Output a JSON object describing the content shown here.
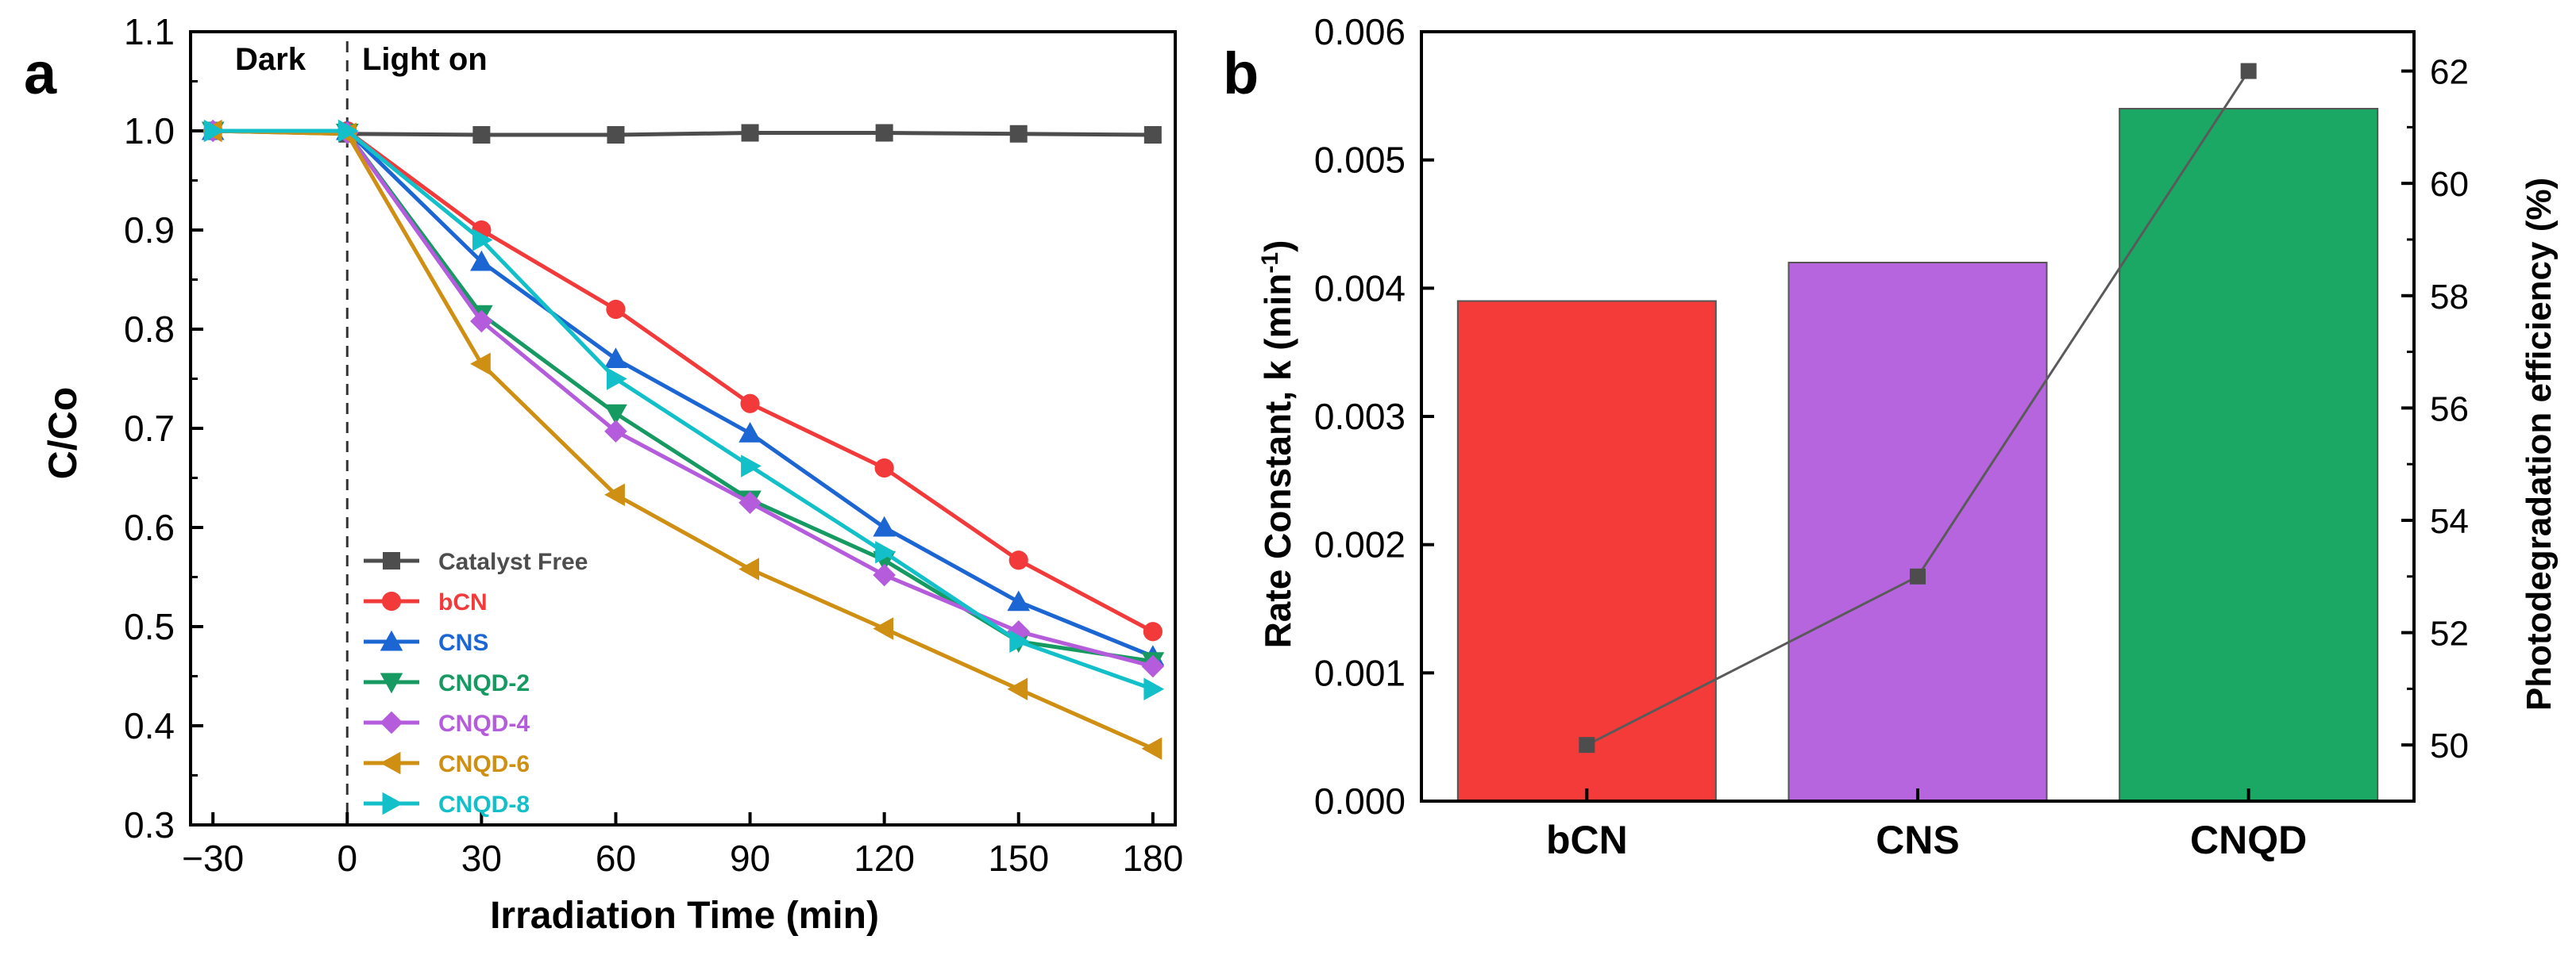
{
  "panels": {
    "a": {
      "letter": "a",
      "annotations": {
        "dark": "Dark",
        "light": "Light on"
      },
      "xlabel": "Irradiation Time (min)",
      "ylabel": "C/Co",
      "xticks": [
        "−30",
        "0",
        "30",
        "60",
        "90",
        "120",
        "150",
        "180"
      ],
      "yticks": [
        "0.3",
        "0.4",
        "0.5",
        "0.6",
        "0.7",
        "0.8",
        "0.9",
        "1.0",
        "1.1"
      ]
    },
    "b": {
      "letter": "b",
      "ylabel_left": "Rate Constant, k (min",
      "ylabel_left_sup": "-1",
      "ylabel_left_end": ")",
      "ylabel_right": "Photodegradation efficiency (%)",
      "yticks_left": [
        "0.000",
        "0.001",
        "0.002",
        "0.003",
        "0.004",
        "0.005",
        "0.006"
      ],
      "yticks_right": [
        "50",
        "52",
        "54",
        "56",
        "58",
        "60",
        "62"
      ]
    }
  },
  "chart_data": [
    {
      "type": "line",
      "panel": "a",
      "title": "",
      "xlabel": "Irradiation Time (min)",
      "ylabel": "C/Co",
      "xlim": [
        -35,
        185
      ],
      "ylim": [
        0.3,
        1.1
      ],
      "x": [
        -30,
        0,
        30,
        60,
        90,
        120,
        150,
        180
      ],
      "annotations": [
        "Dark",
        "Light on"
      ],
      "legend_position": "bottom-left",
      "series": [
        {
          "name": "Catalyst Free",
          "color": "#4d4d4d",
          "marker": "square",
          "values": [
            1.0,
            0.997,
            0.996,
            0.996,
            0.998,
            0.998,
            0.997,
            0.996
          ]
        },
        {
          "name": "bCN",
          "color": "#f23a3a",
          "marker": "circle",
          "values": [
            1.0,
            1.0,
            0.9,
            0.82,
            0.725,
            0.66,
            0.567,
            0.495
          ]
        },
        {
          "name": "CNS",
          "color": "#1c66d4",
          "marker": "triangle-up",
          "values": [
            1.0,
            1.0,
            0.868,
            0.77,
            0.695,
            0.6,
            0.525,
            0.47
          ]
        },
        {
          "name": "CNQD-2",
          "color": "#169a62",
          "marker": "triangle-down",
          "values": [
            1.0,
            0.998,
            0.815,
            0.715,
            0.628,
            0.567,
            0.485,
            0.465
          ]
        },
        {
          "name": "CNQD-4",
          "color": "#b45cdc",
          "marker": "diamond",
          "values": [
            1.0,
            0.998,
            0.808,
            0.697,
            0.625,
            0.552,
            0.495,
            0.46
          ]
        },
        {
          "name": "CNQD-6",
          "color": "#cf8f12",
          "marker": "triangle-left",
          "values": [
            1.0,
            0.997,
            0.765,
            0.633,
            0.558,
            0.498,
            0.437,
            0.377
          ]
        },
        {
          "name": "CNQD-8",
          "color": "#13c0c9",
          "marker": "triangle-right",
          "values": [
            1.0,
            1.0,
            0.89,
            0.75,
            0.662,
            0.575,
            0.485,
            0.437
          ]
        }
      ]
    },
    {
      "type": "bar",
      "panel": "b",
      "categories": [
        "bCN",
        "CNS",
        "CNQD"
      ],
      "colors": [
        "#f53a3a",
        "#b765de",
        "#1aa864"
      ],
      "values": [
        0.0039,
        0.0042,
        0.0054
      ],
      "ylabel": "Rate Constant, k (min-1)",
      "ylim": [
        0,
        0.006
      ],
      "secondary": {
        "type": "line",
        "name": "Photodegradation efficiency (%)",
        "ylim": [
          49,
          62.7
        ],
        "values": [
          50,
          53,
          62
        ]
      }
    }
  ]
}
